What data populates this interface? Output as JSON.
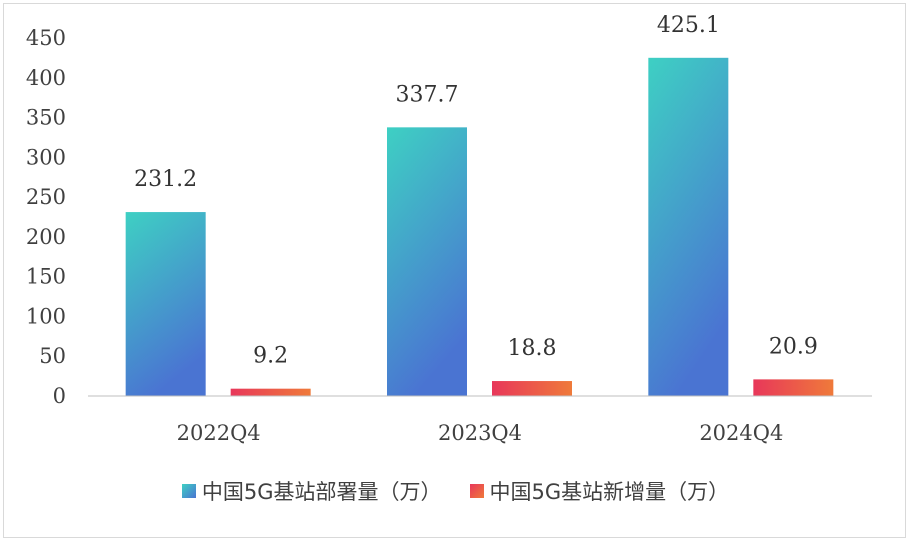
{
  "chart_data": {
    "type": "bar",
    "categories": [
      "2022Q4",
      "2023Q4",
      "2024Q4"
    ],
    "yticks": [
      "0",
      "50",
      "100",
      "150",
      "200",
      "250",
      "300",
      "350",
      "400",
      "450"
    ],
    "ylim": [
      0,
      450
    ],
    "grid": false,
    "legend_position": "bottom",
    "series": [
      {
        "name": "中国5G基站部署量（万）",
        "values": [
          231.2,
          337.7,
          425.1
        ],
        "labels": [
          "231.2",
          "337.7",
          "425.1"
        ],
        "color_top": "#3ed0c3",
        "color_bottom": "#4a74d2"
      },
      {
        "name": "中国5G基站新增量（万）",
        "values": [
          9.2,
          18.8,
          20.9
        ],
        "labels": [
          "9.2",
          "18.8",
          "20.9"
        ],
        "color_top": "#e8375a",
        "color_bottom": "#ef7a3a"
      }
    ]
  }
}
